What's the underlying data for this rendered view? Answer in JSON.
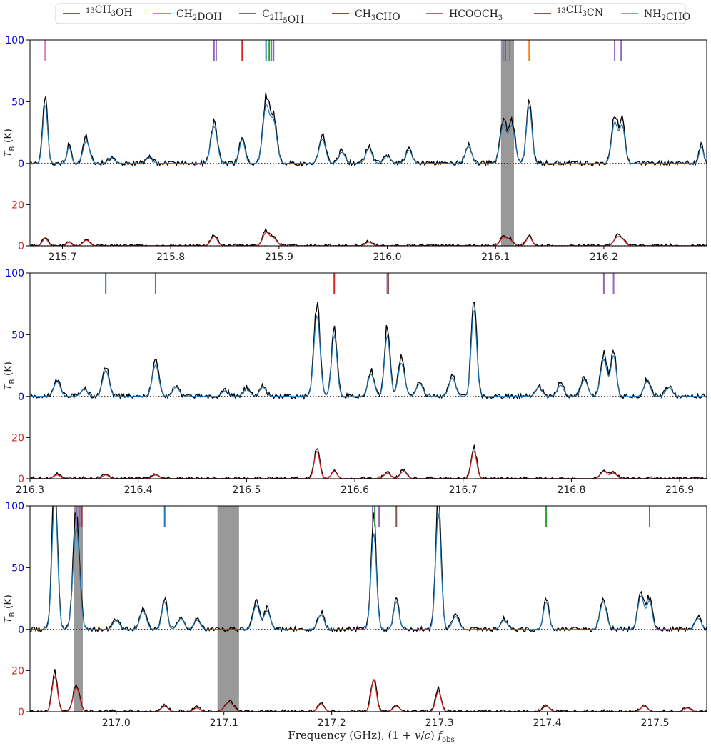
{
  "colors": {
    "obs": "#000000",
    "model_top": "#1f77b4",
    "model_bottom": "#d62728",
    "ytick_top": "#0000cc",
    "ytick_bottom": "#d62728",
    "shade": "#999999"
  },
  "chart_data": {
    "type": "line",
    "xlabel": "Frequency (GHz), (1+v/c) f_obs",
    "ylabel": "T_B (K)",
    "legend": {
      "placement": "top",
      "entries": [
        {
          "label": "13CH3OH",
          "color": "#1f77b4"
        },
        {
          "label": "CH2DOH",
          "color": "#ff7f0e"
        },
        {
          "label": "C2H5OH",
          "color": "#2ca02c"
        },
        {
          "label": "CH3CHO",
          "color": "#d62728"
        },
        {
          "label": "HCOOCH3",
          "color": "#9467bd"
        },
        {
          "label": "13CH3CN",
          "color": "#8c564b"
        },
        {
          "label": "NH2CHO",
          "color": "#e377c2"
        }
      ]
    },
    "panels": [
      {
        "xlim": [
          215.67,
          216.295
        ],
        "xticks": [
          215.7,
          215.8,
          215.9,
          216.0,
          216.1,
          216.2
        ],
        "xticklabels": [
          "215.7",
          "215.8",
          "215.9",
          "216.0",
          "216.1",
          "216.2"
        ],
        "ylim": [
          0,
          100
        ],
        "top_offset": 40,
        "yticks_top": [
          0,
          50,
          100
        ],
        "yticks_bottom": [
          0,
          20
        ],
        "shaded": [
          [
            216.105,
            216.117
          ]
        ],
        "markers": [
          {
            "x": 215.684,
            "c": "#e377c2"
          },
          {
            "x": 215.84,
            "c": "#9467bd"
          },
          {
            "x": 215.842,
            "c": "#9467bd"
          },
          {
            "x": 215.866,
            "c": "#d62728"
          },
          {
            "x": 215.888,
            "c": "#1f77b4"
          },
          {
            "x": 215.891,
            "c": "#2ca02c"
          },
          {
            "x": 215.893,
            "c": "#9467bd"
          },
          {
            "x": 215.895,
            "c": "#9467bd"
          },
          {
            "x": 216.107,
            "c": "#9467bd"
          },
          {
            "x": 216.109,
            "c": "#1f77b4"
          },
          {
            "x": 216.113,
            "c": "#9467bd"
          },
          {
            "x": 216.131,
            "c": "#ff7f0e"
          },
          {
            "x": 216.21,
            "c": "#9467bd"
          },
          {
            "x": 216.216,
            "c": "#9467bd"
          }
        ],
        "peaks_top": [
          [
            215.684,
            32,
            0.0022
          ],
          [
            215.706,
            9,
            0.002
          ],
          [
            215.722,
            12,
            0.003
          ],
          [
            215.745,
            3,
            0.003
          ],
          [
            215.78,
            3,
            0.003
          ],
          [
            215.84,
            20,
            0.003
          ],
          [
            215.866,
            13,
            0.0025
          ],
          [
            215.888,
            30,
            0.003
          ],
          [
            215.895,
            22,
            0.003
          ],
          [
            215.94,
            13,
            0.003
          ],
          [
            215.958,
            6,
            0.003
          ],
          [
            215.983,
            8,
            0.003
          ],
          [
            216.0,
            4,
            0.003
          ],
          [
            216.02,
            7,
            0.003
          ],
          [
            216.075,
            9,
            0.003
          ],
          [
            216.107,
            20,
            0.003
          ],
          [
            216.115,
            20,
            0.003
          ],
          [
            216.131,
            31,
            0.0025
          ],
          [
            216.21,
            22,
            0.0028
          ],
          [
            216.217,
            20,
            0.0025
          ],
          [
            216.29,
            9,
            0.002
          ]
        ],
        "peaks_bottom": [
          [
            215.684,
            4,
            0.0025
          ],
          [
            215.706,
            2,
            0.002
          ],
          [
            215.722,
            3,
            0.003
          ],
          [
            215.84,
            5,
            0.003
          ],
          [
            215.888,
            7,
            0.003
          ],
          [
            215.895,
            4,
            0.003
          ],
          [
            215.983,
            2,
            0.003
          ],
          [
            216.107,
            4,
            0.003
          ],
          [
            216.113,
            3,
            0.003
          ],
          [
            216.131,
            5,
            0.0025
          ],
          [
            216.212,
            4,
            0.003
          ],
          [
            216.217,
            3,
            0.003
          ]
        ]
      },
      {
        "xlim": [
          216.3,
          216.925
        ],
        "xticks": [
          216.3,
          216.4,
          216.5,
          216.6,
          216.7,
          216.8,
          216.9
        ],
        "xticklabels": [
          "216.3",
          "216.4",
          "216.5",
          "216.6",
          "216.7",
          "216.8",
          "216.9"
        ],
        "ylim": [
          0,
          100
        ],
        "top_offset": 40,
        "yticks_top": [
          0,
          50,
          100
        ],
        "yticks_bottom": [
          0,
          20
        ],
        "shaded": [],
        "markers": [
          {
            "x": 216.37,
            "c": "#1f77b4"
          },
          {
            "x": 216.416,
            "c": "#2ca02c"
          },
          {
            "x": 216.581,
            "c": "#d62728"
          },
          {
            "x": 216.63,
            "c": "#9467bd"
          },
          {
            "x": 216.631,
            "c": "#8c564b"
          },
          {
            "x": 216.83,
            "c": "#9467bd"
          },
          {
            "x": 216.839,
            "c": "#9467bd"
          }
        ],
        "peaks_top": [
          [
            216.325,
            8,
            0.003
          ],
          [
            216.35,
            4,
            0.003
          ],
          [
            216.37,
            14,
            0.003
          ],
          [
            216.416,
            17,
            0.003
          ],
          [
            216.435,
            5,
            0.003
          ],
          [
            216.48,
            3,
            0.003
          ],
          [
            216.5,
            4,
            0.003
          ],
          [
            216.515,
            5,
            0.003
          ],
          [
            216.565,
            44,
            0.0028
          ],
          [
            216.581,
            33,
            0.0025
          ],
          [
            216.615,
            12,
            0.003
          ],
          [
            216.63,
            33,
            0.0025
          ],
          [
            216.643,
            18,
            0.003
          ],
          [
            216.66,
            7,
            0.003
          ],
          [
            216.69,
            10,
            0.003
          ],
          [
            216.71,
            47,
            0.0025
          ],
          [
            216.77,
            5,
            0.003
          ],
          [
            216.79,
            6,
            0.003
          ],
          [
            216.812,
            9,
            0.003
          ],
          [
            216.83,
            20,
            0.003
          ],
          [
            216.839,
            22,
            0.0025
          ],
          [
            216.87,
            8,
            0.003
          ],
          [
            216.89,
            5,
            0.003
          ]
        ],
        "peaks_bottom": [
          [
            216.325,
            2,
            0.003
          ],
          [
            216.37,
            2,
            0.003
          ],
          [
            216.416,
            2,
            0.003
          ],
          [
            216.565,
            15,
            0.0025
          ],
          [
            216.581,
            4,
            0.0025
          ],
          [
            216.63,
            3,
            0.003
          ],
          [
            216.645,
            4,
            0.003
          ],
          [
            216.71,
            15,
            0.0025
          ],
          [
            216.83,
            4,
            0.003
          ],
          [
            216.839,
            3,
            0.003
          ]
        ]
      },
      {
        "xlim": [
          216.92,
          217.548
        ],
        "xticks": [
          217.0,
          217.1,
          217.2,
          217.3,
          217.4,
          217.5
        ],
        "xticklabels": [
          "217.0",
          "217.1",
          "217.2",
          "217.3",
          "217.4",
          "217.5"
        ],
        "ylim": [
          0,
          100
        ],
        "top_offset": 40,
        "yticks_top": [
          0,
          50,
          100
        ],
        "yticks_bottom": [
          0,
          20
        ],
        "shaded": [
          [
            216.961,
            216.969
          ],
          [
            217.094,
            217.114
          ]
        ],
        "markers": [
          {
            "x": 216.963,
            "c": "#9467bd"
          },
          {
            "x": 216.966,
            "c": "#9467bd"
          },
          {
            "x": 216.968,
            "c": "#d62728"
          },
          {
            "x": 217.045,
            "c": "#1f77b4"
          },
          {
            "x": 217.238,
            "c": "#9467bd"
          },
          {
            "x": 217.24,
            "c": "#2ca02c"
          },
          {
            "x": 217.244,
            "c": "#9467bd"
          },
          {
            "x": 217.26,
            "c": "#8c564b"
          },
          {
            "x": 217.399,
            "c": "#2ca02c"
          },
          {
            "x": 217.495,
            "c": "#2ca02c"
          }
        ],
        "peaks_top": [
          [
            216.943,
            73,
            0.0025
          ],
          [
            216.963,
            55,
            0.003
          ],
          [
            217.0,
            5,
            0.003
          ],
          [
            217.025,
            10,
            0.003
          ],
          [
            217.045,
            15,
            0.0025
          ],
          [
            217.06,
            6,
            0.003
          ],
          [
            217.075,
            5,
            0.003
          ],
          [
            217.13,
            13,
            0.003
          ],
          [
            217.14,
            10,
            0.003
          ],
          [
            217.19,
            8,
            0.003
          ],
          [
            217.239,
            52,
            0.0025
          ],
          [
            217.26,
            15,
            0.0025
          ],
          [
            217.299,
            63,
            0.0025
          ],
          [
            217.315,
            7,
            0.003
          ],
          [
            217.36,
            5,
            0.003
          ],
          [
            217.399,
            15,
            0.0025
          ],
          [
            217.452,
            15,
            0.003
          ],
          [
            217.487,
            18,
            0.003
          ],
          [
            217.495,
            15,
            0.0025
          ],
          [
            217.54,
            6,
            0.003
          ]
        ],
        "peaks_bottom": [
          [
            216.943,
            19,
            0.0025
          ],
          [
            216.963,
            13,
            0.003
          ],
          [
            217.045,
            3,
            0.003
          ],
          [
            217.075,
            2,
            0.003
          ],
          [
            217.105,
            5,
            0.004
          ],
          [
            217.19,
            4,
            0.003
          ],
          [
            217.239,
            17,
            0.0025
          ],
          [
            217.26,
            3,
            0.003
          ],
          [
            217.299,
            11,
            0.0025
          ],
          [
            217.399,
            3,
            0.003
          ],
          [
            217.49,
            3,
            0.003
          ],
          [
            217.53,
            2,
            0.003
          ]
        ]
      }
    ]
  }
}
